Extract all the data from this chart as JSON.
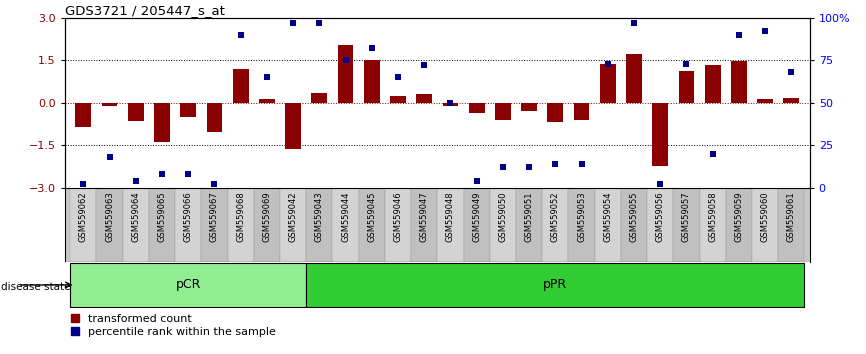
{
  "title": "GDS3721 / 205447_s_at",
  "samples": [
    "GSM559062",
    "GSM559063",
    "GSM559064",
    "GSM559065",
    "GSM559066",
    "GSM559067",
    "GSM559068",
    "GSM559069",
    "GSM559042",
    "GSM559043",
    "GSM559044",
    "GSM559045",
    "GSM559046",
    "GSM559047",
    "GSM559048",
    "GSM559049",
    "GSM559050",
    "GSM559051",
    "GSM559052",
    "GSM559053",
    "GSM559054",
    "GSM559055",
    "GSM559056",
    "GSM559057",
    "GSM559058",
    "GSM559059",
    "GSM559060",
    "GSM559061"
  ],
  "bar_values": [
    -0.85,
    -0.12,
    -0.65,
    -1.4,
    -0.5,
    -1.05,
    1.2,
    0.12,
    -1.65,
    0.35,
    2.05,
    1.5,
    0.22,
    0.32,
    -0.12,
    -0.38,
    -0.62,
    -0.28,
    -0.68,
    -0.6,
    1.38,
    1.72,
    -2.25,
    1.12,
    1.32,
    1.48,
    0.12,
    0.18
  ],
  "percentile_values": [
    2,
    18,
    4,
    8,
    8,
    2,
    90,
    65,
    97,
    97,
    75,
    82,
    65,
    72,
    50,
    4,
    12,
    12,
    14,
    14,
    73,
    97,
    2,
    73,
    20,
    90,
    92,
    68
  ],
  "pcr_count": 9,
  "ppr_count": 19,
  "ylim": [
    -3,
    3
  ],
  "yticks_left": [
    -3,
    -1.5,
    0,
    1.5,
    3
  ],
  "yticks_right": [
    0,
    25,
    50,
    75,
    100
  ],
  "bar_color": "#8B0000",
  "dot_color": "#00008B",
  "pcr_color": "#90EE90",
  "ppr_color": "#32CD32",
  "label_transformed": "transformed count",
  "label_percentile": "percentile rank within the sample",
  "disease_state_label": "disease state",
  "pcr_label": "pCR",
  "ppr_label": "pPR"
}
